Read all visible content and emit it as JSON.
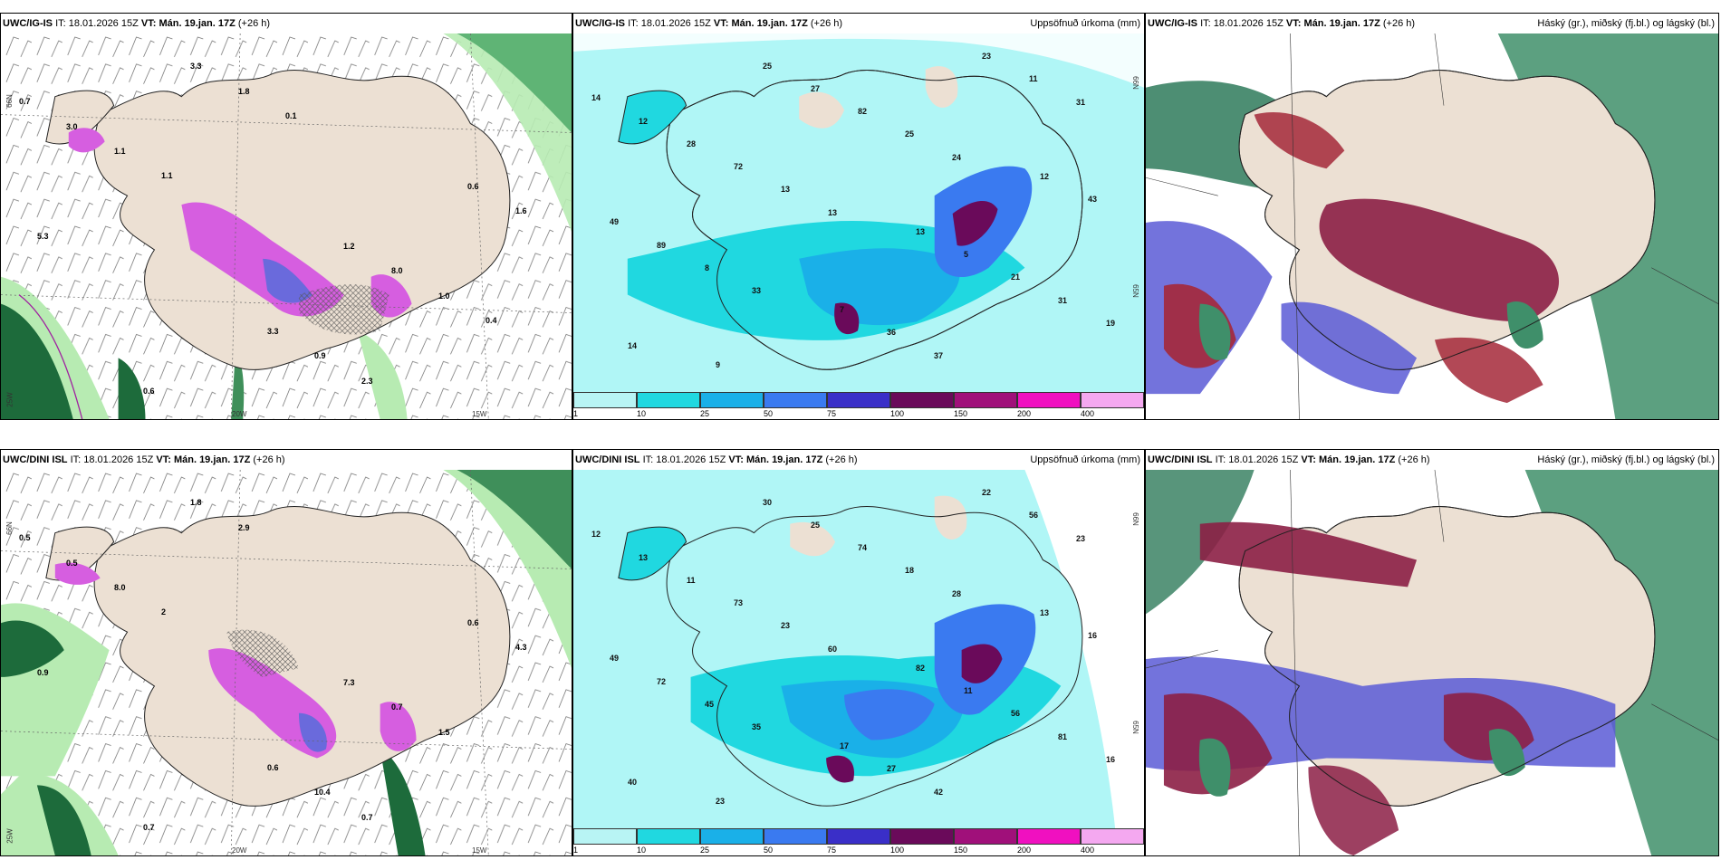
{
  "rows": [
    {
      "model": "UWC/IG-IS",
      "it_label": "IT:",
      "it_value": "18.01.2026 15Z",
      "vt_label": "VT:",
      "vt_value": "Mán. 19.jan. 17Z",
      "lead": "(+26 h)",
      "panels": [
        {
          "right_title": "",
          "labels": [
            "0.7",
            "1.2",
            "0.6",
            "0.6",
            "3.3",
            "3.0",
            "8.0",
            "3.3",
            "1.6",
            "0.9",
            "1.1",
            "1.0",
            "1.8",
            "5.3",
            "2.3",
            "1.1",
            "0.4",
            "0.1"
          ]
        },
        {
          "right_title": "Uppsöfnuð úrkoma (mm)",
          "labels": [
            "14",
            "13",
            "9",
            "12",
            "7",
            "12",
            "5",
            "25",
            "43",
            "36",
            "28",
            "21",
            "27",
            "49",
            "37",
            "72",
            "31",
            "82",
            "89",
            "23",
            "13",
            "19",
            "25",
            "8",
            "11",
            "13",
            "14",
            "24",
            "33",
            "31"
          ]
        },
        {
          "right_title": "Háský (gr.), miðský (fj.bl.) og lágský (bl.)",
          "labels": []
        }
      ]
    },
    {
      "model": "UWC/DINI ISL",
      "it_label": "IT:",
      "it_value": "18.01.2026 15Z",
      "vt_label": "VT:",
      "vt_value": "Mán. 19.jan. 17Z",
      "lead": "(+26 h)",
      "panels": [
        {
          "right_title": "",
          "labels": [
            "0.5",
            "7.3",
            "0.7",
            "0.6",
            "0.6",
            "0.5",
            "0.7",
            "1.8",
            "4.3",
            "10.4",
            "8.0",
            "1.5",
            "2.9",
            "0.9",
            "0.7",
            "2"
          ]
        },
        {
          "right_title": "Uppsöfnuð úrkoma (mm)",
          "labels": [
            "12",
            "82",
            "23",
            "13",
            "17",
            "13",
            "11",
            "30",
            "16",
            "27",
            "11",
            "56",
            "25",
            "49",
            "42",
            "73",
            "81",
            "74",
            "72",
            "22",
            "23",
            "16",
            "18",
            "45",
            "56",
            "60",
            "40",
            "28",
            "35",
            "23"
          ]
        },
        {
          "right_title": "Háský (gr.), miðský (fj.bl.) og lágský (bl.)",
          "labels": []
        }
      ]
    }
  ],
  "axis_labels": {
    "lat_n": "66N",
    "lat_s": "65N",
    "lon_w": "25W",
    "lon_m": "20W",
    "lon_e": "15W"
  },
  "colorbar": {
    "ticks": [
      "1",
      "10",
      "25",
      "50",
      "75",
      "100",
      "150",
      "200",
      "400"
    ],
    "colors": [
      "#b8f4f4",
      "#20d8e0",
      "#1ab0e8",
      "#3a7af0",
      "#3a2fc8",
      "#6a0a5a",
      "#a0107a",
      "#f010c0",
      "#f4a8f0"
    ]
  },
  "colors": {
    "land": "#ece0d3",
    "sea_precip": "#b0f6f6",
    "green_light": "#b7ebb2",
    "green_dark": "#1d6b3b",
    "magenta": "#d65ee0",
    "cloud_red": "#a52838",
    "cloud_blue": "#5a5ad6",
    "cloud_green": "#3f8f6a"
  }
}
